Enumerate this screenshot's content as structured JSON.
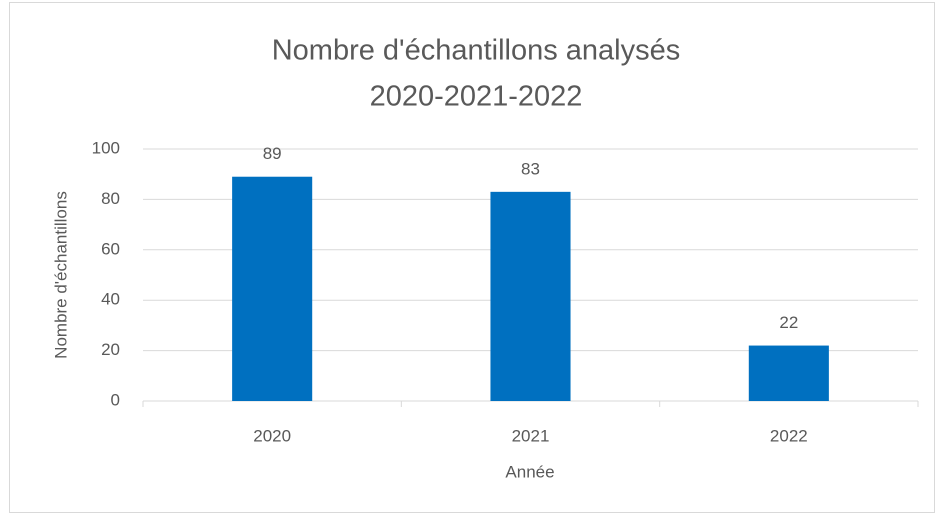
{
  "chart_data": {
    "type": "bar",
    "title": [
      "Nombre d'échantillons analysés",
      "2020-2021-2022"
    ],
    "x_label": "Année",
    "y_label": "Nombre d'échantillons",
    "categories": [
      "2020",
      "2021",
      "2022"
    ],
    "values": [
      89,
      83,
      22
    ],
    "color": "#0070c0",
    "ylim": [
      0,
      100
    ],
    "yticks": [
      0,
      20,
      40,
      60,
      80,
      100
    ],
    "grid": true
  }
}
